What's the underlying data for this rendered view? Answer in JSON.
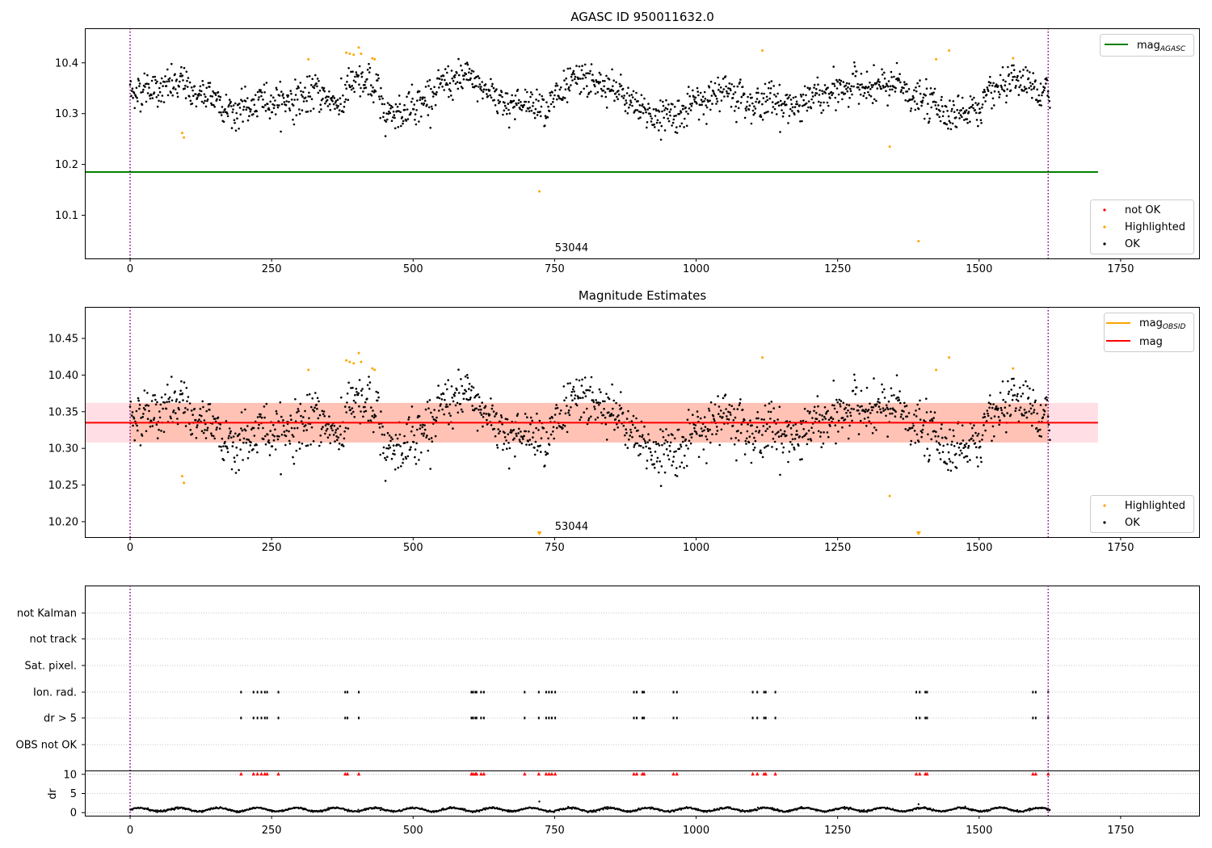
{
  "colors": {
    "ok": "#000000",
    "highlighted": "#ffa500",
    "not_ok": "#ff0000",
    "agasc": "#008000",
    "mag": "#ff0000",
    "mag_obsid": "#ffa500",
    "band": "#ffc0cb",
    "band_inner": "#ffa07a",
    "obsid_line": "#800080"
  },
  "chart_data": [
    {
      "type": "scatter",
      "title": "AGASC ID 950011632.0",
      "xlim": [
        -80,
        1890
      ],
      "ylim": [
        10.015,
        10.468
      ],
      "xticks": [
        "0",
        "250",
        "500",
        "750",
        "1000",
        "1250",
        "1500",
        "1750"
      ],
      "yticks": [
        "10.1",
        "10.2",
        "10.3",
        "10.4"
      ],
      "obsid_lines": [
        0,
        1622
      ],
      "obsid_label": "53044",
      "obsid_label_x": 780,
      "agasc_mag": 10.185,
      "agasc_mag_xrange": [
        -80,
        1710
      ],
      "legend_lines": [
        {
          "label": "mag",
          "subscript": "AGASC",
          "color": "#008000"
        }
      ],
      "legend_markers": [
        {
          "label": "not OK",
          "color": "#ff0000"
        },
        {
          "label": "Highlighted",
          "color": "#ffa500"
        },
        {
          "label": "OK",
          "color": "#000000"
        }
      ],
      "ok_series": {
        "x_range": [
          0,
          1625
        ],
        "n_points": 1600,
        "base": 10.33,
        "noise": 0.024
      },
      "highlighted_points": [
        [
          92,
          10.262
        ],
        [
          95,
          10.253
        ],
        [
          315,
          10.407
        ],
        [
          382,
          10.42
        ],
        [
          388,
          10.418
        ],
        [
          395,
          10.416
        ],
        [
          404,
          10.43
        ],
        [
          408,
          10.418
        ],
        [
          428,
          10.409
        ],
        [
          432,
          10.407
        ],
        [
          723,
          10.147
        ],
        [
          1117,
          10.424
        ],
        [
          1342,
          10.235
        ],
        [
          1393,
          10.049
        ],
        [
          1424,
          10.407
        ],
        [
          1447,
          10.424
        ],
        [
          1560,
          10.409
        ]
      ]
    },
    {
      "type": "scatter",
      "title": "Magnitude Estimates",
      "xlim": [
        -80,
        1890
      ],
      "ylim": [
        10.179,
        10.493
      ],
      "xticks": [
        "0",
        "250",
        "500",
        "750",
        "1000",
        "1250",
        "1500",
        "1750"
      ],
      "yticks": [
        "10.20",
        "10.25",
        "10.30",
        "10.35",
        "10.40",
        "10.45"
      ],
      "obsid_lines": [
        0,
        1622
      ],
      "obsid_label": "53044",
      "obsid_label_x": 780,
      "mag": 10.335,
      "mag_xrange": [
        -80,
        1710
      ],
      "mag_obsid": 10.335,
      "band_outer": [
        10.308,
        10.362
      ],
      "band_outer_xrange": [
        -80,
        1710
      ],
      "band_inner": [
        10.308,
        10.362
      ],
      "band_inner_xrange": [
        0,
        1622
      ],
      "legend_lines": [
        {
          "label": "mag",
          "subscript": "OBSID",
          "color": "#ffa500"
        },
        {
          "label": "mag",
          "subscript": "",
          "color": "#ff0000"
        }
      ],
      "legend_markers": [
        {
          "label": "Highlighted",
          "color": "#ffa500"
        },
        {
          "label": "OK",
          "color": "#000000"
        }
      ],
      "offscale_markers_x": [
        723,
        1393
      ]
    },
    {
      "type": "scatter",
      "title": "",
      "xlim": [
        -80,
        1890
      ],
      "xticks": [
        "0",
        "250",
        "500",
        "750",
        "1000",
        "1250",
        "1500",
        "1750"
      ],
      "flag_labels": [
        "not Kalman",
        "not track",
        "Sat. pixel.",
        "Ion. rad.",
        "dr > 5",
        "OBS not OK"
      ],
      "dr_ylabel": "dr",
      "dr_yticks": [
        "0",
        "5",
        "10"
      ],
      "dr_ylim": [
        -0.8,
        10.8
      ],
      "obsid_lines": [
        0,
        1622
      ],
      "flag_events_x": [
        196,
        218,
        225,
        232,
        238,
        242,
        262,
        380,
        384,
        404,
        603,
        606,
        610,
        612,
        620,
        625,
        697,
        722,
        735,
        740,
        745,
        751,
        890,
        895,
        905,
        908,
        960,
        966,
        1100,
        1108,
        1120,
        1123,
        1140,
        1389,
        1395,
        1405,
        1408,
        1595,
        1600,
        1622
      ],
      "dr_series": {
        "x_range": [
          0,
          1625
        ],
        "n_points": 1500,
        "mean": 0.8
      },
      "dr_spikes": [
        [
          723,
          2.9
        ],
        [
          1393,
          2.2
        ]
      ]
    }
  ]
}
